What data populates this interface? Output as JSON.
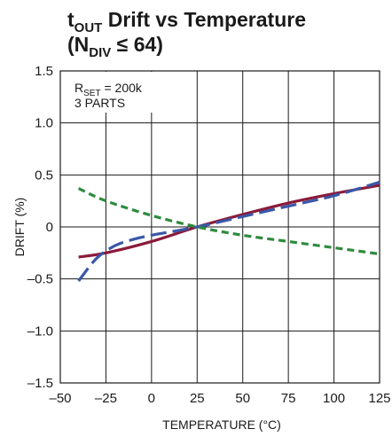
{
  "chart_data": {
    "type": "line",
    "title_line1": {
      "t": "t",
      "sub": "OUT",
      "rest": " Drift vs Temperature"
    },
    "title_line2": {
      "open": "(N",
      "sub": "DIV",
      "rest": " ≤ 64)"
    },
    "xlabel": "TEMPERATURE (°C)",
    "ylabel": "DRIFT (%)",
    "xlim": [
      -50,
      125
    ],
    "ylim": [
      -1.5,
      1.5
    ],
    "x_ticks": [
      -50,
      -25,
      0,
      25,
      50,
      75,
      100,
      125
    ],
    "x_tick_labels": [
      "–50",
      "–25",
      "0",
      "25",
      "50",
      "75",
      "100",
      "125"
    ],
    "y_ticks": [
      1.5,
      1.0,
      0.5,
      0,
      -0.5,
      -1.0,
      -1.5
    ],
    "y_tick_labels": [
      "1.5",
      "1.0",
      "0.5",
      "0",
      "–0.5",
      "–1.0",
      "–1.5"
    ],
    "grid": true,
    "annotation": {
      "line1": {
        "r": "R",
        "sub": "SET",
        "rest": " = 200k"
      },
      "line2": "3 PARTS"
    },
    "series": [
      {
        "color": "#8b1a3a",
        "dash": "solid",
        "x": [
          -40,
          -25,
          0,
          25,
          50,
          75,
          100,
          125
        ],
        "y": [
          -0.29,
          -0.25,
          -0.14,
          0.0,
          0.12,
          0.23,
          0.32,
          0.4
        ]
      },
      {
        "color": "#3a57a8",
        "dash": "long-dash",
        "x": [
          -40,
          -30,
          -20,
          -10,
          0,
          25,
          50,
          75,
          100,
          125
        ],
        "y": [
          -0.52,
          -0.3,
          -0.18,
          -0.12,
          -0.08,
          0.0,
          0.1,
          0.2,
          0.3,
          0.43
        ]
      },
      {
        "color": "#2e8b3e",
        "dash": "short-dash",
        "x": [
          -40,
          -25,
          0,
          25,
          50,
          75,
          100,
          125
        ],
        "y": [
          0.37,
          0.25,
          0.11,
          0.0,
          -0.08,
          -0.14,
          -0.2,
          -0.26
        ]
      }
    ]
  }
}
